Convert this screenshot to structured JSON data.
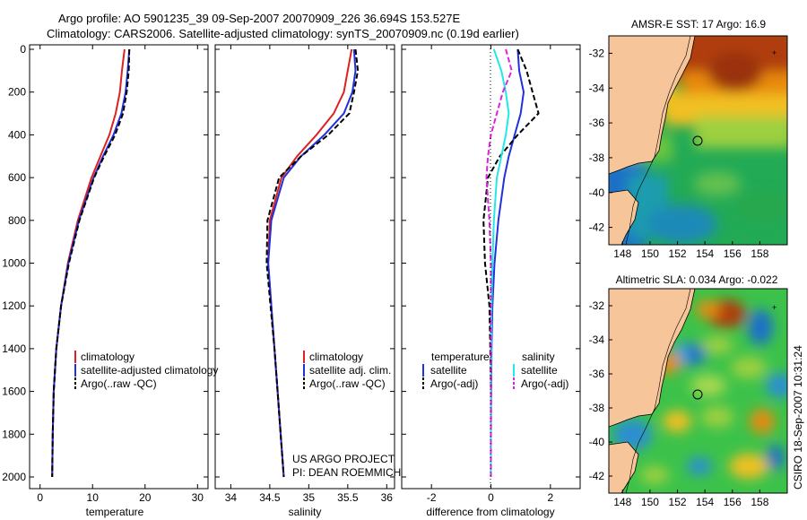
{
  "header": {
    "line1": "Argo profile: AO 5901235_39 09-Sep-2007 20070909_226 36.694S 153.527E",
    "line2": "Climatology: CARS2006. Satellite-adjusted climatology: synTS_20070909.nc (0.19d earlier)"
  },
  "side_label": "CSIRO 18-Sep-2007 10:31:24",
  "colors": {
    "climatology": "#dd2020",
    "satellite": "#2030dd",
    "argo": "#000000",
    "sal_sat": "#22e8e8",
    "sal_argo": "#e020e0",
    "land": "#f6c59a"
  },
  "chart_data": [
    {
      "type": "line",
      "id": "temperature",
      "xlabel": "temperature",
      "ylabel": "",
      "xlim": [
        -2,
        32
      ],
      "ylim": [
        2050,
        0
      ],
      "xticks": [
        0,
        10,
        20,
        30
      ],
      "yticks": [
        0,
        200,
        400,
        600,
        800,
        1000,
        1200,
        1400,
        1600,
        1800,
        2000
      ],
      "legend": [
        "climatology",
        "satellite-adjusted climatology",
        "Argo(..raw -QC)"
      ],
      "series": [
        {
          "name": "climatology",
          "style": "solid",
          "color": "#dd2020",
          "x": [
            16.1,
            15.6,
            15.2,
            14.4,
            13.2,
            11.5,
            9.8,
            7.2,
            5.3,
            4.0,
            3.1,
            2.6,
            2.4,
            2.3
          ],
          "y": [
            0,
            100,
            200,
            300,
            400,
            500,
            600,
            800,
            1000,
            1200,
            1400,
            1600,
            1800,
            2000
          ]
        },
        {
          "name": "satellite-adjusted climatology",
          "style": "solid",
          "color": "#2030dd",
          "x": [
            17.0,
            16.7,
            16.3,
            15.5,
            14.0,
            12.0,
            10.2,
            7.4,
            5.4,
            4.0,
            3.1,
            2.6,
            2.4,
            2.3
          ],
          "y": [
            0,
            100,
            200,
            300,
            400,
            500,
            600,
            800,
            1000,
            1200,
            1400,
            1600,
            1800,
            2000
          ]
        },
        {
          "name": "Argo(..raw -QC)",
          "style": "dashed",
          "color": "#000000",
          "x": [
            17.0,
            16.9,
            16.5,
            15.8,
            14.3,
            12.2,
            10.3,
            7.5,
            5.5,
            4.0,
            3.1,
            2.6,
            2.4,
            2.3
          ],
          "y": [
            0,
            100,
            200,
            300,
            400,
            500,
            600,
            800,
            1000,
            1200,
            1400,
            1600,
            1800,
            2000
          ]
        }
      ]
    },
    {
      "type": "line",
      "id": "salinity",
      "xlabel": "salinity",
      "xlim": [
        33.8,
        36.1
      ],
      "ylim": [
        2050,
        0
      ],
      "xticks": [
        34,
        34.5,
        35,
        35.5,
        36
      ],
      "legend": [
        "climatology",
        "satellite adj. clim.",
        "Argo(..raw -QC)"
      ],
      "series": [
        {
          "name": "climatology",
          "style": "solid",
          "color": "#dd2020",
          "x": [
            35.55,
            35.5,
            35.45,
            35.32,
            35.1,
            34.85,
            34.65,
            34.5,
            34.48,
            34.52,
            34.56,
            34.6,
            34.64,
            34.68
          ],
          "y": [
            0,
            100,
            200,
            300,
            400,
            500,
            600,
            800,
            1000,
            1200,
            1400,
            1600,
            1800,
            2000
          ]
        },
        {
          "name": "satellite adj. clim.",
          "style": "solid",
          "color": "#2030dd",
          "x": [
            35.58,
            35.6,
            35.56,
            35.45,
            35.2,
            34.9,
            34.68,
            34.52,
            34.48,
            34.52,
            34.56,
            34.6,
            34.64,
            34.68
          ],
          "y": [
            0,
            100,
            200,
            300,
            400,
            500,
            600,
            800,
            1000,
            1200,
            1400,
            1600,
            1800,
            2000
          ]
        },
        {
          "name": "Argo(..raw -QC)",
          "style": "dashed",
          "color": "#000000",
          "x": [
            35.6,
            35.63,
            35.58,
            35.52,
            35.25,
            34.9,
            34.62,
            34.47,
            34.46,
            34.51,
            34.56,
            34.6,
            34.64,
            34.68
          ],
          "y": [
            0,
            100,
            200,
            300,
            400,
            500,
            600,
            800,
            1000,
            1200,
            1400,
            1600,
            1800,
            2000
          ]
        }
      ],
      "annotation": [
        "US ARGO PROJECT",
        "PI: DEAN ROEMMICH"
      ]
    },
    {
      "type": "line",
      "id": "difference",
      "xlabel": "difference from climatology",
      "xlim": [
        -3,
        3
      ],
      "ylim": [
        2050,
        0
      ],
      "xticks": [
        -2,
        0,
        2
      ],
      "legend": {
        "temperature": [
          "temperature",
          "satellite",
          "Argo(-adj)"
        ],
        "salinity": [
          "salinity",
          "satellite",
          "Argo(-adj)"
        ]
      },
      "series": [
        {
          "name": "temperature satellite",
          "style": "solid",
          "color": "#2030dd",
          "x": [
            0.9,
            0.95,
            1.1,
            1.0,
            0.8,
            0.6,
            0.45,
            0.25,
            0.12,
            0.05,
            0.02,
            0.01,
            0.0,
            0.0
          ],
          "y": [
            0,
            100,
            200,
            300,
            400,
            500,
            600,
            800,
            1000,
            1200,
            1400,
            1600,
            1800,
            2000
          ]
        },
        {
          "name": "temperature Argo(-adj)",
          "style": "dashed",
          "color": "#000000",
          "x": [
            0.9,
            1.2,
            1.4,
            1.6,
            0.9,
            0.3,
            -0.1,
            -0.25,
            -0.2,
            -0.05,
            -0.02,
            0.0,
            0.0,
            0.0
          ],
          "y": [
            0,
            100,
            200,
            300,
            400,
            500,
            600,
            800,
            1000,
            1200,
            1400,
            1600,
            1800,
            2000
          ]
        },
        {
          "name": "salinity satellite",
          "style": "solid",
          "color": "#22e8e8",
          "x": [
            0.1,
            0.35,
            0.5,
            0.6,
            0.5,
            0.35,
            0.2,
            0.1,
            0.05,
            0.02,
            0.01,
            0.0,
            0.0,
            0.0
          ],
          "y": [
            0,
            100,
            200,
            300,
            400,
            500,
            600,
            800,
            1000,
            1200,
            1400,
            1600,
            1800,
            2000
          ]
        },
        {
          "name": "salinity Argo(-adj)",
          "style": "dashed",
          "color": "#e020e0",
          "x": [
            0.5,
            0.7,
            0.4,
            0.2,
            0.0,
            -0.1,
            -0.15,
            -0.05,
            0.0,
            0.0,
            0.0,
            0.0,
            0.0,
            0.0
          ],
          "y": [
            0,
            100,
            200,
            300,
            400,
            500,
            600,
            800,
            1000,
            1200,
            1400,
            1600,
            1800,
            2000
          ]
        }
      ]
    },
    {
      "type": "heatmap",
      "id": "sst-map",
      "title": "AMSR-E SST: 17  Argo: 16.9",
      "xlim": [
        147,
        160
      ],
      "ylim": [
        -43,
        -31
      ],
      "xticks": [
        148,
        150,
        152,
        154,
        156,
        158
      ],
      "yticks": [
        -32,
        -34,
        -36,
        -38,
        -40,
        -42
      ],
      "argo_position": [
        153.527,
        -36.694
      ]
    },
    {
      "type": "heatmap",
      "id": "sla-map",
      "title": "Altimetric SLA: 0.034  Argo: -0.022",
      "xlim": [
        147,
        160
      ],
      "ylim": [
        -43,
        -31
      ],
      "xticks": [
        148,
        150,
        152,
        154,
        156,
        158
      ],
      "yticks": [
        -32,
        -34,
        -36,
        -38,
        -40,
        -42
      ],
      "argo_position": [
        153.527,
        -36.694
      ]
    }
  ]
}
